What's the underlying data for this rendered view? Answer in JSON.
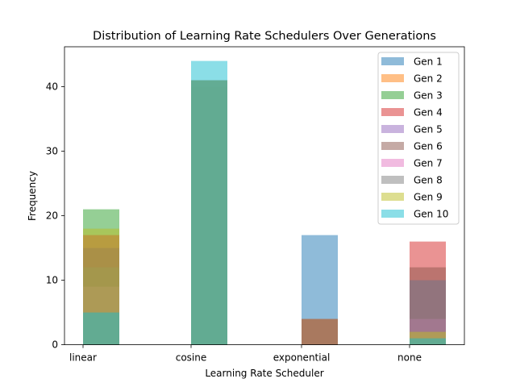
{
  "chart_data": {
    "type": "bar",
    "title": "Distribution of Learning Rate Schedulers Over Generations",
    "xlabel": "Learning Rate Scheduler",
    "ylabel": "Frequency",
    "categories": [
      "linear",
      "cosine",
      "exponential",
      "none"
    ],
    "ylim": [
      0,
      46.2
    ],
    "yticks": [
      0,
      10,
      20,
      30,
      40
    ],
    "grid": false,
    "legend_position": "top-right",
    "alpha": 0.5,
    "series": [
      {
        "name": "Gen 1",
        "color": "#1f77b4",
        "values": [
          5,
          40,
          17,
          1
        ]
      },
      {
        "name": "Gen 2",
        "color": "#ff7f0e",
        "values": [
          5,
          40,
          4,
          1
        ]
      },
      {
        "name": "Gen 3",
        "color": "#2ca02c",
        "values": [
          21,
          40,
          0,
          1
        ]
      },
      {
        "name": "Gen 4",
        "color": "#d62728",
        "values": [
          17,
          41,
          0,
          16
        ]
      },
      {
        "name": "Gen 5",
        "color": "#9467bd",
        "values": [
          15,
          41,
          0,
          10
        ]
      },
      {
        "name": "Gen 6",
        "color": "#8c564b",
        "values": [
          15,
          41,
          4,
          12
        ]
      },
      {
        "name": "Gen 7",
        "color": "#e377c2",
        "values": [
          9,
          41,
          0,
          4
        ]
      },
      {
        "name": "Gen 8",
        "color": "#7f7f7f",
        "values": [
          12,
          41,
          0,
          10
        ]
      },
      {
        "name": "Gen 9",
        "color": "#bcbd22",
        "values": [
          18,
          41,
          0,
          2
        ]
      },
      {
        "name": "Gen 10",
        "color": "#17becf",
        "values": [
          5,
          44,
          0,
          1
        ]
      }
    ]
  }
}
